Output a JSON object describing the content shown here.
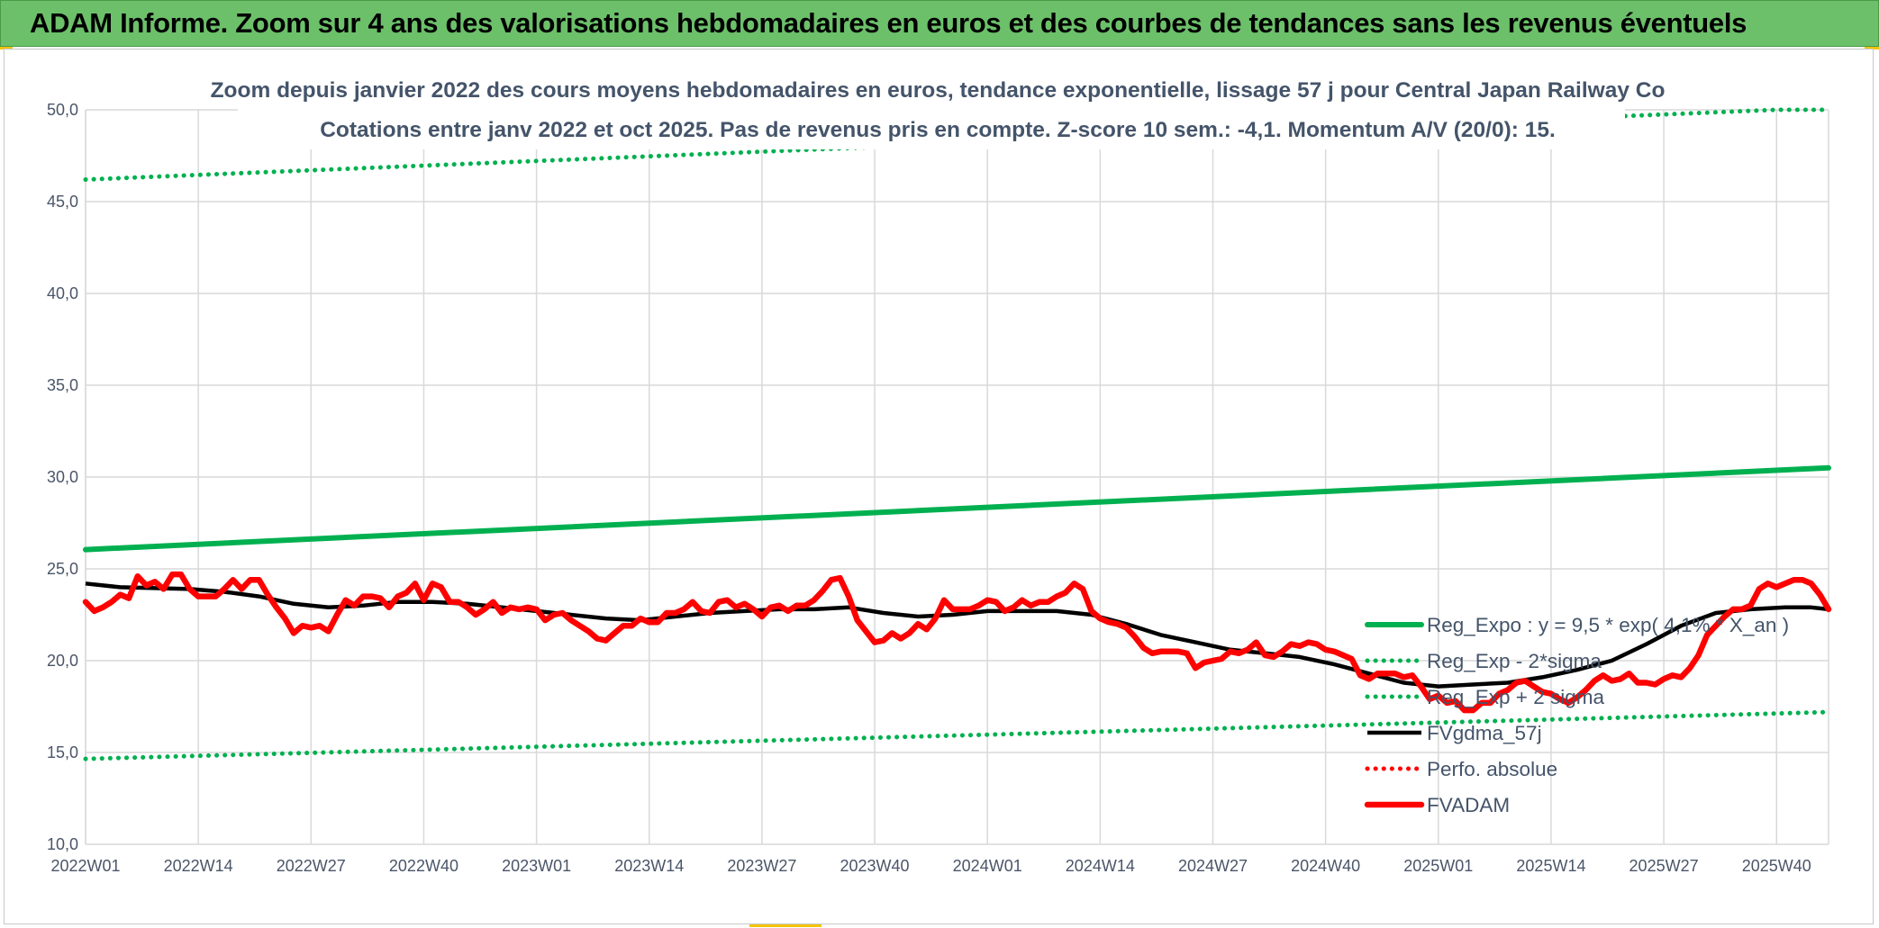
{
  "banner": {
    "title": "ADAM Informe. Zoom sur 4 ans des valorisations hebdomadaires en euros et des courbes de tendances sans les revenus éventuels"
  },
  "colors": {
    "banner": "#6cc06a",
    "green": "#00b050",
    "black": "#000000",
    "red": "#ff0000",
    "grid": "#d9d9d9",
    "text": "#44546a"
  },
  "chart_data": {
    "type": "line",
    "title": "Zoom depuis janvier 2022 des cours moyens hebdomadaires en euros, tendance exponentielle, lissage 57 j pour Central Japan Railway Co",
    "subtitle": "Cotations entre janv 2022 et oct 2025. Pas de revenus pris en compte. Z-score 10 sem.: -4,1. Momentum A/V (20/0): 15.",
    "xlabel": "",
    "ylabel": "",
    "ylim": [
      10,
      50
    ],
    "y_ticks": [
      "10,0",
      "15,0",
      "20,0",
      "25,0",
      "30,0",
      "35,0",
      "40,0",
      "45,0",
      "50,0"
    ],
    "x_ticks": [
      "2022W01",
      "2022W14",
      "2022W27",
      "2022W40",
      "2023W01",
      "2023W14",
      "2023W27",
      "2023W40",
      "2024W01",
      "2024W14",
      "2024W27",
      "2024W40",
      "2025W01",
      "2025W14",
      "2025W27",
      "2025W40"
    ],
    "x_range_weeks": [
      0,
      201
    ],
    "grid": true,
    "legend_placement": "bottom-right",
    "series": [
      {
        "name": "Reg_Expo : y = 9,5 * exp( 4,1% * X_an )",
        "style": "solid",
        "color": "#00b050",
        "x": [
          0,
          201
        ],
        "y": [
          26.05,
          30.5
        ]
      },
      {
        "name": "Reg_Exp - 2*sigma",
        "style": "dotted",
        "color": "#00b050",
        "x": [
          0,
          201
        ],
        "y": [
          14.65,
          17.2
        ]
      },
      {
        "name": "Reg_Exp + 2 sigma",
        "style": "dotted",
        "color": "#00b050",
        "x": [
          0,
          195,
          201
        ],
        "y": [
          46.2,
          50.0,
          50.0
        ]
      },
      {
        "name": "FVgdma_57j",
        "style": "solid",
        "color": "#000000",
        "x": [
          0,
          4,
          8,
          12,
          16,
          20,
          24,
          28,
          32,
          36,
          40,
          44,
          48,
          52,
          56,
          60,
          64,
          68,
          72,
          76,
          80,
          84,
          88,
          92,
          96,
          100,
          104,
          108,
          112,
          116,
          120,
          124,
          128,
          132,
          136,
          140,
          144,
          148,
          152,
          156,
          160,
          164,
          168,
          172,
          176,
          180,
          184,
          188,
          192,
          196,
          199,
          201
        ],
        "y": [
          24.2,
          24.0,
          23.95,
          23.9,
          23.75,
          23.5,
          23.1,
          22.9,
          23.0,
          23.2,
          23.2,
          23.1,
          22.9,
          22.7,
          22.5,
          22.3,
          22.2,
          22.4,
          22.6,
          22.7,
          22.8,
          22.8,
          22.9,
          22.6,
          22.4,
          22.5,
          22.7,
          22.7,
          22.7,
          22.5,
          22.0,
          21.4,
          21.0,
          20.6,
          20.4,
          20.2,
          19.8,
          19.3,
          18.8,
          18.6,
          18.7,
          18.8,
          19.1,
          19.5,
          20.0,
          20.9,
          21.9,
          22.6,
          22.8,
          22.9,
          22.9,
          22.8
        ]
      },
      {
        "name": "Perfo. absolue",
        "style": "dotted",
        "color": "#ff0000",
        "x": [],
        "y": []
      },
      {
        "name": "FVADAM",
        "style": "solid",
        "color": "#ff0000",
        "x": [
          0,
          1,
          2,
          3,
          4,
          5,
          6,
          7,
          8,
          9,
          10,
          11,
          12,
          13,
          14,
          15,
          16,
          17,
          18,
          19,
          20,
          21,
          22,
          23,
          24,
          25,
          26,
          27,
          28,
          29,
          30,
          31,
          32,
          33,
          34,
          35,
          36,
          37,
          38,
          39,
          40,
          41,
          42,
          43,
          44,
          45,
          46,
          47,
          48,
          49,
          50,
          51,
          52,
          53,
          54,
          55,
          56,
          57,
          58,
          59,
          60,
          61,
          62,
          63,
          64,
          65,
          66,
          67,
          68,
          69,
          70,
          71,
          72,
          73,
          74,
          75,
          76,
          77,
          78,
          79,
          80,
          81,
          82,
          83,
          84,
          85,
          86,
          87,
          88,
          89,
          90,
          91,
          92,
          93,
          94,
          95,
          96,
          97,
          98,
          99,
          100,
          101,
          102,
          103,
          104,
          105,
          106,
          107,
          108,
          109,
          110,
          111,
          112,
          113,
          114,
          115,
          116,
          117,
          118,
          119,
          120,
          121,
          122,
          123,
          124,
          125,
          126,
          127,
          128,
          129,
          130,
          131,
          132,
          133,
          134,
          135,
          136,
          137,
          138,
          139,
          140,
          141,
          142,
          143,
          144,
          145,
          146,
          147,
          148,
          149,
          150,
          151,
          152,
          153,
          154,
          155,
          156,
          157,
          158,
          159,
          160,
          161,
          162,
          163,
          164,
          165,
          166,
          167,
          168,
          169,
          170,
          171,
          172,
          173,
          174,
          175,
          176,
          177,
          178,
          179,
          180,
          181,
          182,
          183,
          184,
          185,
          186,
          187,
          188,
          189,
          190,
          191,
          192,
          193,
          194,
          195,
          196,
          197,
          198,
          199,
          200,
          201
        ],
        "y": [
          23.2,
          22.7,
          22.9,
          23.2,
          23.6,
          23.4,
          24.6,
          24.1,
          24.3,
          23.9,
          24.7,
          24.7,
          23.9,
          23.5,
          23.5,
          23.5,
          23.9,
          24.4,
          23.9,
          24.4,
          24.4,
          23.6,
          22.9,
          22.3,
          21.5,
          21.9,
          21.8,
          21.9,
          21.6,
          22.5,
          23.3,
          23.0,
          23.5,
          23.5,
          23.4,
          22.9,
          23.5,
          23.7,
          24.2,
          23.3,
          24.2,
          24.0,
          23.2,
          23.2,
          22.9,
          22.5,
          22.8,
          23.2,
          22.6,
          22.9,
          22.8,
          22.9,
          22.8,
          22.2,
          22.5,
          22.6,
          22.2,
          21.9,
          21.6,
          21.2,
          21.1,
          21.5,
          21.9,
          21.9,
          22.3,
          22.1,
          22.1,
          22.6,
          22.6,
          22.8,
          23.2,
          22.7,
          22.6,
          23.2,
          23.3,
          22.9,
          23.1,
          22.8,
          22.4,
          22.9,
          23.0,
          22.7,
          23.0,
          23.0,
          23.3,
          23.8,
          24.4,
          24.5,
          23.5,
          22.2,
          21.6,
          21.0,
          21.1,
          21.5,
          21.2,
          21.5,
          22.0,
          21.7,
          22.3,
          23.3,
          22.8,
          22.8,
          22.8,
          23.0,
          23.3,
          23.2,
          22.7,
          22.9,
          23.3,
          23.0,
          23.2,
          23.2,
          23.5,
          23.7,
          24.2,
          23.9,
          22.7,
          22.3,
          22.1,
          22.0,
          21.8,
          21.3,
          20.7,
          20.4,
          20.5,
          20.5,
          20.5,
          20.4,
          19.6,
          19.9,
          20.0,
          20.1,
          20.5,
          20.4,
          20.6,
          21.0,
          20.3,
          20.2,
          20.5,
          20.9,
          20.8,
          21.0,
          20.9,
          20.6,
          20.5,
          20.3,
          20.1,
          19.2,
          19.0,
          19.3,
          19.3,
          19.3,
          19.1,
          19.2,
          18.6,
          17.9,
          18.1,
          17.7,
          17.8,
          17.3,
          17.3,
          17.7,
          17.7,
          18.2,
          18.4,
          18.8,
          18.9,
          18.6,
          18.3,
          18.2,
          17.9,
          17.7,
          18.0,
          18.4,
          18.9,
          19.2,
          18.9,
          19.0,
          19.3,
          18.8,
          18.8,
          18.7,
          19.0,
          19.2,
          19.1,
          19.6,
          20.3,
          21.4,
          21.9,
          22.4,
          22.8,
          22.8,
          23.0,
          23.9,
          24.2,
          24.0,
          24.2,
          24.4,
          24.4,
          24.2,
          23.6,
          22.8
        ]
      }
    ]
  }
}
